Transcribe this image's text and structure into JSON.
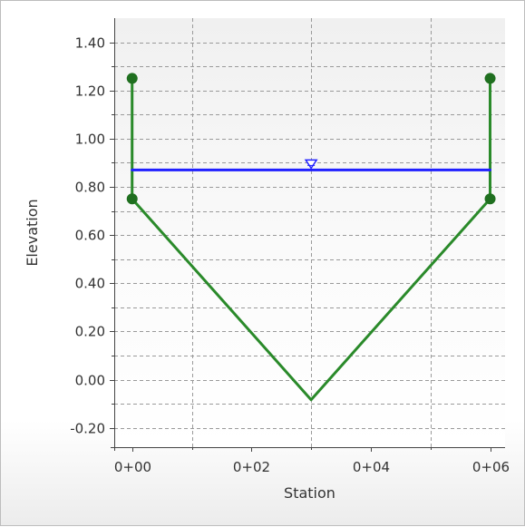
{
  "chart_data": {
    "type": "line",
    "xlabel": "Station",
    "ylabel": "Elevation",
    "xlim": [
      -0.3,
      6.25
    ],
    "ylim": [
      -0.28,
      1.5
    ],
    "x_ticks": [
      {
        "value": 0,
        "label": "0+00"
      },
      {
        "value": 2,
        "label": "0+02"
      },
      {
        "value": 4,
        "label": "0+04"
      },
      {
        "value": 6,
        "label": "0+06"
      }
    ],
    "x_gridlines": [
      1,
      3,
      5
    ],
    "y_ticks": [
      {
        "value": 1.4,
        "label": "1.40"
      },
      {
        "value": 1.2,
        "label": "1.20"
      },
      {
        "value": 1.0,
        "label": "1.00"
      },
      {
        "value": 0.8,
        "label": "0.80"
      },
      {
        "value": 0.6,
        "label": "0.60"
      },
      {
        "value": 0.4,
        "label": "0.40"
      },
      {
        "value": 0.2,
        "label": "0.20"
      },
      {
        "value": 0.0,
        "label": "0.00"
      },
      {
        "value": -0.2,
        "label": "-0.20"
      }
    ],
    "y_gridlines": [
      1.4,
      1.3,
      1.2,
      1.1,
      1.0,
      0.9,
      0.8,
      0.7,
      0.6,
      0.5,
      0.4,
      0.3,
      0.2,
      0.1,
      0.0,
      -0.1,
      -0.2
    ],
    "grid": true,
    "series": [
      {
        "role": "channel-section",
        "color": "#2a8a2a",
        "x": [
          0,
          0,
          3,
          6,
          6
        ],
        "y": [
          1.25,
          0.75,
          -0.083,
          0.75,
          1.25
        ]
      },
      {
        "role": "water-surface",
        "color": "#2020ff",
        "x": [
          0,
          6
        ],
        "y": [
          0.87,
          0.87
        ]
      }
    ],
    "markers": [
      {
        "x": 0,
        "y": 1.25
      },
      {
        "x": 0,
        "y": 0.75
      },
      {
        "x": 6,
        "y": 0.75
      },
      {
        "x": 6,
        "y": 1.25
      }
    ],
    "water_symbol": {
      "x": 3,
      "y": 0.87
    }
  }
}
